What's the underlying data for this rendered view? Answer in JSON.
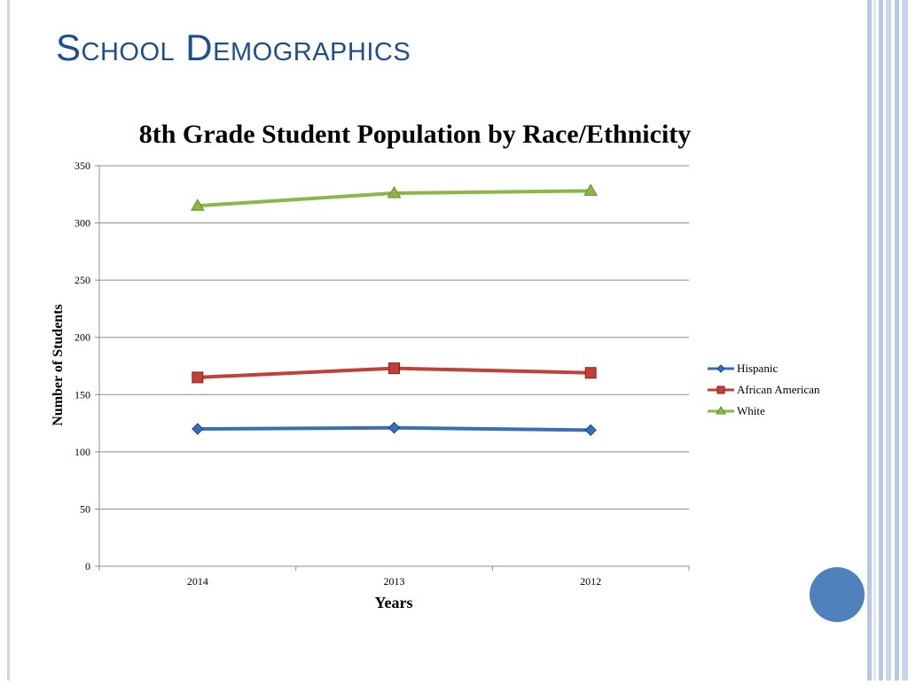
{
  "slide": {
    "title": "School Demographics"
  },
  "colors": {
    "title": "#1f4e8c",
    "accent_circle": "#4f81bd",
    "Hispanic": "#3a6fb7",
    "African American": "#c0413b",
    "White": "#8cb648"
  },
  "chart_data": {
    "type": "line",
    "title": "8th Grade Student Population by Race/Ethnicity",
    "xlabel": "Years",
    "ylabel": "Number of Students",
    "categories": [
      "2014",
      "2013",
      "2012"
    ],
    "ylim": [
      0,
      350
    ],
    "yticks": [
      0,
      50,
      100,
      150,
      200,
      250,
      300,
      350
    ],
    "grid": true,
    "legend_position": "right",
    "series": [
      {
        "name": "Hispanic",
        "marker": "diamond",
        "values": [
          120,
          121,
          119
        ]
      },
      {
        "name": "African American",
        "marker": "square",
        "values": [
          165,
          173,
          169
        ]
      },
      {
        "name": "White",
        "marker": "triangle",
        "values": [
          315,
          326,
          328
        ]
      }
    ]
  }
}
